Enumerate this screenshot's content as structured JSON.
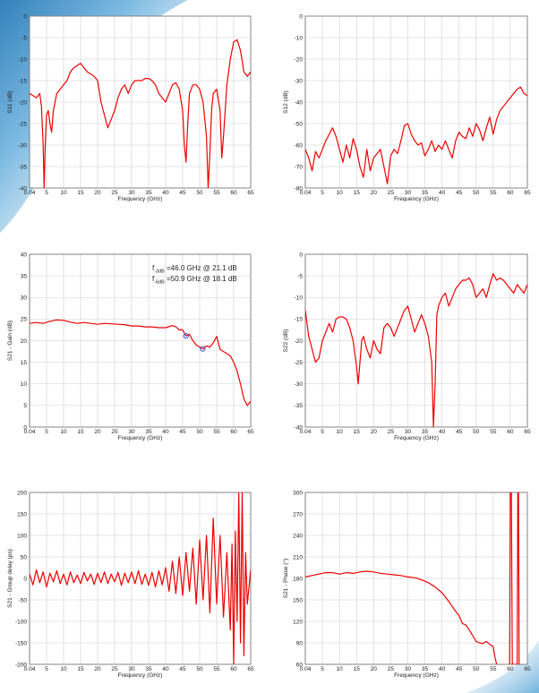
{
  "page": {
    "background_accent": "#2a7fc0"
  },
  "chart_data": [
    {
      "id": "s11",
      "type": "line",
      "xlabel": "Frequency (GHz)",
      "ylabel": "S11 (dB)",
      "xticks": [
        "0.04",
        "5",
        "10",
        "15",
        "20",
        "25",
        "30",
        "35",
        "40",
        "45",
        "50",
        "55",
        "60",
        "65"
      ],
      "xlim": [
        0,
        65
      ],
      "ylim": [
        -40,
        0
      ],
      "yticks": [
        0,
        -5,
        -10,
        -15,
        -20,
        -25,
        -30,
        -35,
        -40
      ],
      "series": [
        {
          "color": "#ee0000",
          "x": [
            0,
            1,
            2,
            3,
            3.5,
            4,
            4.3,
            4.6,
            5,
            5.5,
            6,
            6.5,
            7,
            8,
            9,
            10,
            11,
            12,
            13,
            14,
            15,
            16,
            17,
            18,
            19,
            20,
            21,
            22,
            23,
            24,
            25,
            26,
            27,
            28,
            29,
            30,
            31,
            32,
            33,
            34,
            35,
            36,
            37,
            38,
            39,
            40,
            41,
            42,
            43,
            44,
            45,
            45.5,
            46,
            46.5,
            47,
            48,
            49,
            50,
            51,
            52,
            52.5,
            53,
            53.5,
            54,
            55,
            56,
            56.5,
            57,
            58,
            59,
            60,
            61,
            62,
            63,
            64,
            65
          ],
          "y": [
            -18,
            -18.5,
            -19,
            -18,
            -21,
            -30,
            -40,
            -30,
            -23,
            -22,
            -25,
            -27,
            -22,
            -18,
            -17,
            -16,
            -15,
            -13,
            -12,
            -11.5,
            -11,
            -12,
            -13,
            -13.5,
            -14,
            -15,
            -20,
            -23,
            -26,
            -24,
            -22,
            -19,
            -17,
            -16,
            -18,
            -16,
            -15,
            -15,
            -15,
            -14.5,
            -14.5,
            -15,
            -16,
            -18,
            -19,
            -20,
            -18,
            -16,
            -15.5,
            -17,
            -22,
            -30,
            -34,
            -25,
            -18,
            -16,
            -16,
            -17,
            -20,
            -28,
            -40,
            -32,
            -22,
            -18,
            -17,
            -22,
            -33,
            -28,
            -16,
            -10,
            -6,
            -5.5,
            -8,
            -13,
            -14,
            -13
          ]
        }
      ]
    },
    {
      "id": "s12",
      "type": "line",
      "xlabel": "Frequency (GHz)",
      "ylabel": "S12 (dB)",
      "xticks": [
        "0.04",
        "5",
        "10",
        "15",
        "20",
        "25",
        "30",
        "35",
        "40",
        "45",
        "50",
        "55",
        "60",
        "65"
      ],
      "xlim": [
        0,
        65
      ],
      "ylim": [
        -80,
        0
      ],
      "yticks": [
        0,
        -10,
        -20,
        -30,
        -40,
        -50,
        -60,
        -70,
        -80
      ],
      "series": [
        {
          "color": "#ee0000",
          "x": [
            0,
            1,
            2,
            3,
            4,
            5,
            6,
            7,
            8,
            9,
            10,
            11,
            12,
            13,
            14,
            15,
            16,
            17,
            18,
            19,
            20,
            21,
            22,
            23,
            24,
            25,
            26,
            27,
            28,
            29,
            30,
            31,
            32,
            33,
            34,
            35,
            36,
            37,
            38,
            39,
            40,
            41,
            42,
            43,
            44,
            45,
            46,
            47,
            48,
            49,
            50,
            51,
            52,
            53,
            54,
            55,
            56,
            57,
            58,
            59,
            60,
            61,
            62,
            63,
            64,
            65
          ],
          "y": [
            -62,
            -66,
            -72,
            -63,
            -66,
            -62,
            -58,
            -55,
            -52,
            -56,
            -62,
            -68,
            -60,
            -66,
            -57,
            -62,
            -70,
            -75,
            -62,
            -72,
            -66,
            -64,
            -62,
            -70,
            -78,
            -65,
            -62,
            -64,
            -58,
            -51,
            -50,
            -55,
            -58,
            -60,
            -59,
            -65,
            -62,
            -58,
            -63,
            -60,
            -62,
            -58,
            -62,
            -66,
            -58,
            -54,
            -56,
            -57,
            -52,
            -56,
            -50,
            -53,
            -58,
            -52,
            -47,
            -55,
            -48,
            -44,
            -42,
            -40,
            -38,
            -36,
            -34,
            -33,
            -36,
            -37
          ]
        }
      ]
    },
    {
      "id": "s21-gain",
      "type": "line",
      "xlabel": "Frequency (GHz)",
      "ylabel": "S21 - Gain (dB)",
      "xticks": [
        "0.04",
        "5",
        "10",
        "15",
        "20",
        "25",
        "30",
        "35",
        "40",
        "45",
        "50",
        "55",
        "60",
        "65"
      ],
      "xlim": [
        0,
        65
      ],
      "ylim": [
        0,
        40
      ],
      "yticks": [
        40,
        35,
        30,
        25,
        20,
        15,
        10,
        5,
        0
      ],
      "annotations": [
        {
          "prefix": "f",
          "sub": "-3dB",
          "text": " =46.0 GHz @ 21.1 dB"
        },
        {
          "prefix": "f",
          "sub": "-6dB",
          "text": " =50.9 GHz @ 18.1 dB"
        }
      ],
      "markers": [
        {
          "x": 46.0,
          "y": 21.1,
          "color": "#3355dd"
        },
        {
          "x": 50.9,
          "y": 18.1,
          "color": "#3355dd"
        }
      ],
      "series": [
        {
          "color": "#ee0000",
          "x": [
            0,
            2,
            4,
            6,
            8,
            10,
            12,
            14,
            16,
            18,
            20,
            22,
            24,
            26,
            28,
            30,
            32,
            34,
            36,
            38,
            40,
            42,
            43,
            44,
            45,
            46,
            47,
            48,
            49,
            50,
            51,
            52,
            53,
            54,
            55,
            56,
            57,
            58,
            59,
            60,
            61,
            62,
            63,
            64,
            65
          ],
          "y": [
            24,
            24.2,
            24,
            24.5,
            24.8,
            24.7,
            24.3,
            24,
            24.2,
            24,
            23.8,
            24,
            23.9,
            23.8,
            23.7,
            23.4,
            23.4,
            23.2,
            23.2,
            23,
            23,
            23.5,
            23.2,
            22.5,
            22.5,
            21.1,
            21.5,
            20,
            19,
            18.5,
            18.1,
            18.8,
            18.5,
            19.5,
            21,
            18,
            17.5,
            17,
            16.5,
            15,
            13,
            10,
            6.5,
            5,
            6
          ]
        }
      ]
    },
    {
      "id": "s22",
      "type": "line",
      "xlabel": "Frequency (GHz)",
      "ylabel": "S22 (dB)",
      "xticks": [
        "0.04",
        "5",
        "10",
        "15",
        "20",
        "25",
        "30",
        "35",
        "40",
        "45",
        "50",
        "55",
        "60",
        "65"
      ],
      "xlim": [
        0,
        65
      ],
      "ylim": [
        -40,
        0
      ],
      "yticks": [
        0,
        -5,
        -10,
        -15,
        -20,
        -25,
        -30,
        -35,
        -40
      ],
      "series": [
        {
          "color": "#ee0000",
          "x": [
            0,
            1,
            2,
            3,
            4,
            5,
            6,
            7,
            8,
            9,
            10,
            11,
            12,
            13,
            14,
            15,
            15.5,
            16,
            16.5,
            17,
            18,
            19,
            20,
            21,
            22,
            23,
            24,
            25,
            26,
            27,
            28,
            29,
            30,
            31,
            32,
            33,
            34,
            35,
            36,
            37,
            37.5,
            38,
            38.5,
            39,
            40,
            41,
            42,
            43,
            44,
            45,
            46,
            47,
            48,
            49,
            50,
            51,
            52,
            53,
            54,
            55,
            56,
            57,
            58,
            59,
            60,
            61,
            62,
            63,
            64,
            65
          ],
          "y": [
            -13,
            -19,
            -22,
            -25,
            -24,
            -20,
            -18,
            -16,
            -18,
            -15,
            -14.5,
            -14.5,
            -15,
            -17,
            -20,
            -26,
            -30,
            -25,
            -20,
            -19,
            -22,
            -24,
            -20,
            -22,
            -23,
            -17,
            -16,
            -17,
            -19,
            -17,
            -15,
            -13,
            -12,
            -15,
            -18,
            -16,
            -14,
            -16,
            -19,
            -25,
            -40,
            -30,
            -14,
            -12,
            -10,
            -9,
            -12,
            -10,
            -8,
            -7,
            -6,
            -6,
            -5.5,
            -7,
            -10,
            -9,
            -8,
            -10,
            -7,
            -4.5,
            -6,
            -5.5,
            -6,
            -7,
            -8,
            -9,
            -7,
            -8,
            -9,
            -7
          ]
        }
      ]
    },
    {
      "id": "s21-group-delay",
      "type": "line",
      "xlabel": "Frequency (GHz)",
      "ylabel": "S21 - Group delay (ps)",
      "xticks": [
        "0.04",
        "5",
        "10",
        "15",
        "20",
        "25",
        "30",
        "35",
        "40",
        "45",
        "50",
        "55",
        "60",
        "65"
      ],
      "xlim": [
        0,
        65
      ],
      "ylim": [
        -200,
        200
      ],
      "yticks": [
        200,
        150,
        100,
        50,
        0,
        -50,
        -100,
        -150,
        -200
      ],
      "series": [
        {
          "color": "#ee0000",
          "x": [
            0,
            1,
            2,
            3,
            4,
            5,
            6,
            7,
            8,
            9,
            10,
            11,
            12,
            13,
            14,
            15,
            16,
            17,
            18,
            19,
            20,
            21,
            22,
            23,
            24,
            25,
            26,
            27,
            28,
            29,
            30,
            31,
            32,
            33,
            34,
            35,
            36,
            37,
            38,
            39,
            40,
            41,
            42,
            43,
            44,
            45,
            46,
            47,
            48,
            49,
            50,
            51,
            52,
            53,
            54,
            55,
            56,
            57,
            58,
            59,
            59.5,
            60,
            60.5,
            61,
            61.5,
            62,
            62.5,
            63,
            63.5,
            64,
            65
          ],
          "y": [
            10,
            -15,
            20,
            -10,
            15,
            -20,
            12,
            -8,
            18,
            -12,
            10,
            -15,
            15,
            -10,
            8,
            -12,
            14,
            -6,
            10,
            -14,
            12,
            -10,
            15,
            -12,
            10,
            -8,
            14,
            -16,
            12,
            -10,
            15,
            -12,
            18,
            -14,
            10,
            -16,
            14,
            -20,
            18,
            -15,
            25,
            -30,
            40,
            -35,
            50,
            -40,
            60,
            -30,
            70,
            -60,
            90,
            -50,
            100,
            -80,
            140,
            -60,
            100,
            -90,
            60,
            -120,
            80,
            -200,
            110,
            -100,
            200,
            -150,
            200,
            -180,
            60,
            -60,
            20
          ]
        }
      ]
    },
    {
      "id": "s21-phase",
      "type": "line",
      "xlabel": "Frequency (GHz)",
      "ylabel": "S21 - Phase (°)",
      "xticks": [
        "0.04",
        "5",
        "10",
        "15",
        "20",
        "25",
        "30",
        "35",
        "40",
        "45",
        "50",
        "55",
        "60",
        "65"
      ],
      "xlim": [
        0,
        65
      ],
      "ylim": [
        60,
        300
      ],
      "yticks": [
        300,
        270,
        240,
        210,
        180,
        150,
        120,
        90,
        60
      ],
      "series": [
        {
          "color": "#ee0000",
          "x": [
            0,
            2,
            4,
            6,
            8,
            10,
            12,
            14,
            16,
            18,
            20,
            22,
            24,
            26,
            28,
            30,
            32,
            34,
            36,
            38,
            40,
            42,
            44,
            45,
            46,
            47,
            48,
            49,
            50,
            51,
            52,
            53,
            54,
            55
          ],
          "y": [
            182,
            184,
            186,
            188,
            188,
            186,
            188,
            187,
            189,
            190,
            189,
            187,
            186,
            185,
            184,
            182,
            181,
            178,
            174,
            168,
            160,
            148,
            134,
            128,
            117,
            115,
            108,
            100,
            92,
            90,
            89,
            92,
            88,
            85
          ]
        },
        {
          "color": "#ee0000",
          "x": [
            55,
            55.5,
            56
          ],
          "y": [
            85,
            70,
            60
          ]
        },
        {
          "color": "#ee0000",
          "x": [
            59.8,
            60,
            60.3,
            60.6,
            62,
            62.2,
            62.4,
            62.6
          ],
          "y": [
            60,
            300,
            300,
            60,
            60,
            300,
            300,
            60
          ]
        }
      ]
    }
  ]
}
